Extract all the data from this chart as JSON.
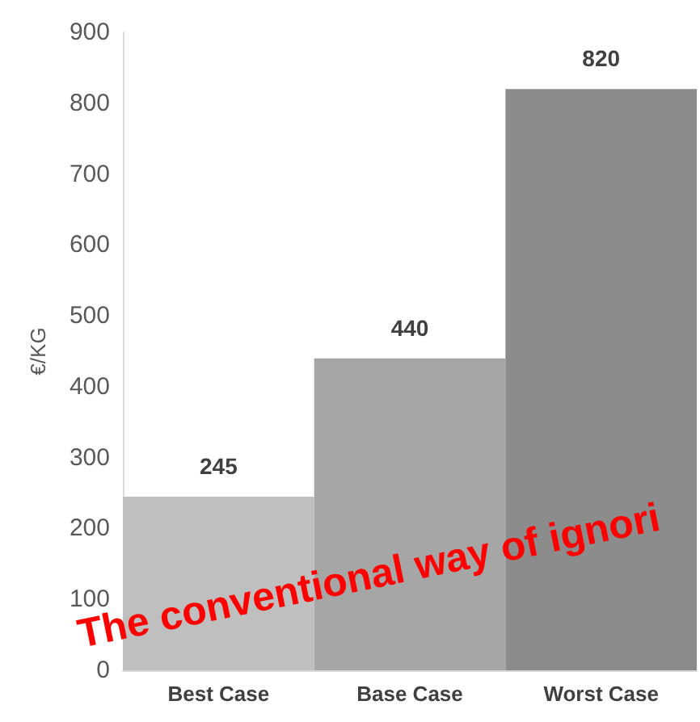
{
  "chart_data": {
    "type": "bar",
    "ylabel": "€/KG",
    "categories": [
      "Best Case",
      "Base Case",
      "Worst Case"
    ],
    "values": [
      245,
      440,
      820
    ],
    "colors": [
      "#bfbfbf",
      "#a6a6a6",
      "#8c8c8c"
    ],
    "ylim": [
      0,
      900
    ],
    "yticks": [
      0,
      100,
      200,
      300,
      400,
      500,
      600,
      700,
      800,
      900
    ],
    "grid": false,
    "data_labels": true,
    "annotations": [
      "The conventional way of ignori"
    ]
  }
}
